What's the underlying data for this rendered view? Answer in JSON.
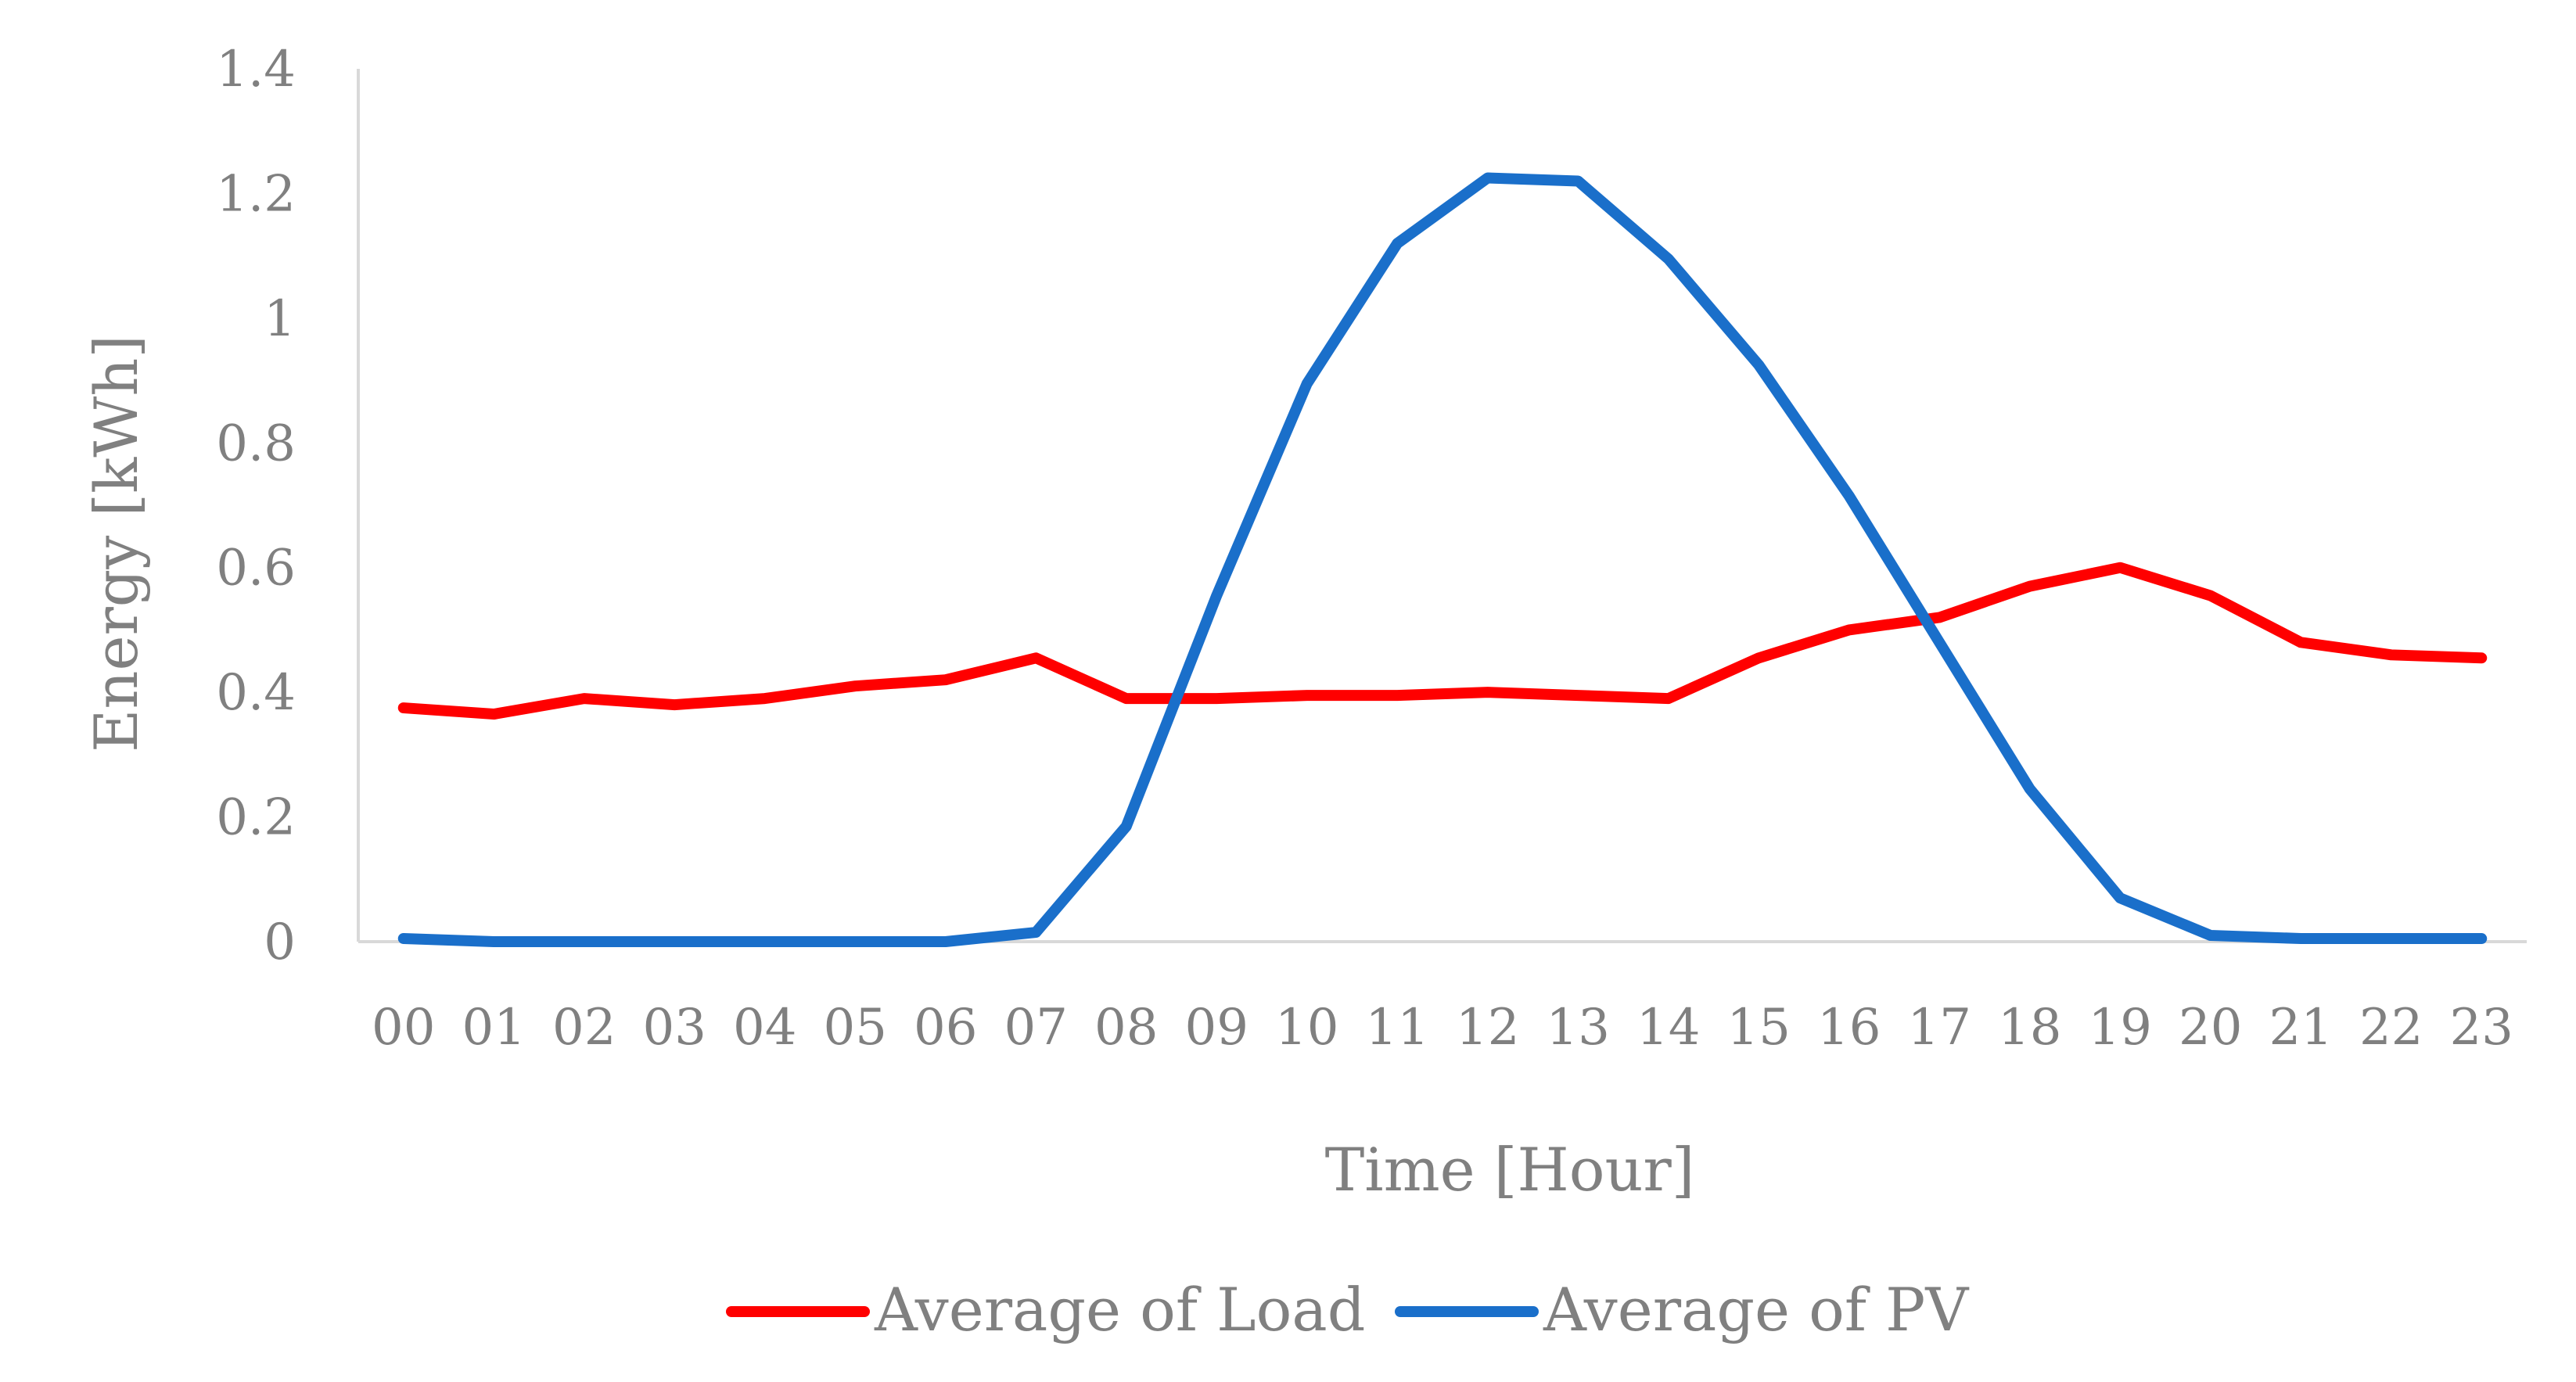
{
  "chart_data": {
    "type": "line",
    "title": "",
    "xlabel": "Time [Hour]",
    "ylabel": "Energy [kWh]",
    "categories": [
      "00",
      "01",
      "02",
      "03",
      "04",
      "05",
      "06",
      "07",
      "08",
      "09",
      "10",
      "11",
      "12",
      "13",
      "14",
      "15",
      "16",
      "17",
      "18",
      "19",
      "20",
      "21",
      "22",
      "23"
    ],
    "ylim": [
      0,
      1.4
    ],
    "yticks": [
      0,
      0.2,
      0.4,
      0.6,
      0.8,
      1,
      1.2,
      1.4
    ],
    "ytick_labels": [
      "0",
      "0.2",
      "0.4",
      "0.6",
      "0.8",
      "1",
      "1.2",
      "1.4"
    ],
    "grid": false,
    "legend_position": "bottom-center",
    "series": [
      {
        "name": "Average of Load",
        "color": "#ff0000",
        "values": [
          0.375,
          0.365,
          0.39,
          0.38,
          0.39,
          0.41,
          0.42,
          0.455,
          0.39,
          0.39,
          0.395,
          0.395,
          0.4,
          0.395,
          0.39,
          0.455,
          0.5,
          0.52,
          0.57,
          0.6,
          0.555,
          0.48,
          0.46,
          0.455
        ]
      },
      {
        "name": "Average of PV",
        "color": "#1a6fca",
        "values": [
          0.005,
          0,
          0,
          0,
          0,
          0,
          0,
          0.015,
          0.185,
          0.555,
          0.895,
          1.12,
          1.225,
          1.22,
          1.095,
          0.925,
          0.715,
          0.48,
          0.245,
          0.07,
          0.01,
          0.005,
          0.005,
          0.005
        ]
      }
    ]
  }
}
